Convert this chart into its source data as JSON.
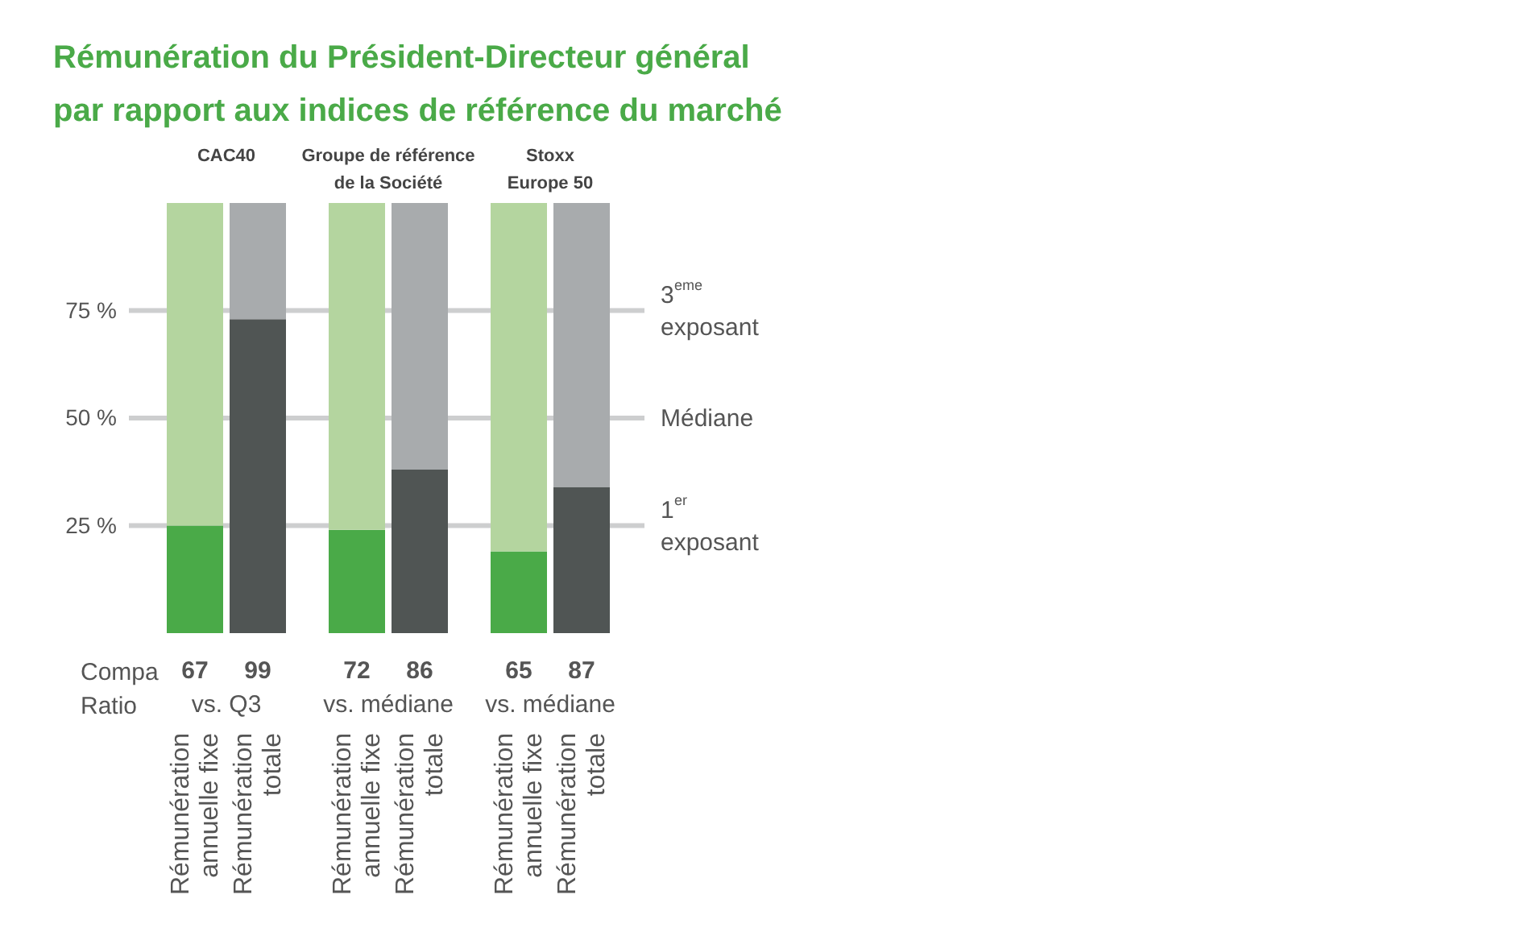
{
  "chart_data": {
    "type": "bar",
    "stacked": true,
    "grid": false,
    "title": "Rémunération du Président-Directeur général\npar rapport aux indices de référence du marché",
    "categories": [
      "Rémunération\nannuelle fixe",
      "Rémunération\ntotale",
      "Rémunération\nannuelle fixe",
      "Rémunération\ntotale",
      "Rémunération\nannuelle fixe",
      "Rémunération\ntotale"
    ],
    "series": [
      {
        "colors": [
          "#4aaa48",
          "#505554",
          "#4aaa48",
          "#505554",
          "#4aaa48",
          "#505554"
        ],
        "values": [
          25,
          73,
          24,
          38,
          19,
          34
        ]
      },
      {
        "colors": [
          "#b4d59f",
          "#a8abad",
          "#b4d59f",
          "#a8abad",
          "#b4d59f",
          "#a8abad"
        ],
        "values": [
          75,
          27,
          76,
          62,
          81,
          66
        ]
      }
    ],
    "ylim": [
      0,
      100
    ],
    "yticks": [
      {
        "value": 25,
        "label": "25 %"
      },
      {
        "value": 50,
        "label": "50 %"
      },
      {
        "value": 75,
        "label": "75 %"
      }
    ],
    "ref_lines": [
      {
        "axis": "y",
        "value": 75,
        "label": "3$^{eme}$\nexposant",
        "color": "#cdcecf"
      },
      {
        "axis": "y",
        "value": 50,
        "label": "Médiane",
        "color": "#cdcecf"
      },
      {
        "axis": "y",
        "value": 25,
        "label": "1$^{er}$\nexposant",
        "color": "#cdcecf"
      }
    ],
    "annotations": [
      "CAC40",
      "Groupe de référence\nde la Société",
      "Stoxx\nEurope 50",
      "Compa\nRatio",
      "67",
      "99",
      "72",
      "86",
      "65",
      "87",
      "vs. Q3",
      "vs. médiane",
      "vs. médiane"
    ]
  }
}
